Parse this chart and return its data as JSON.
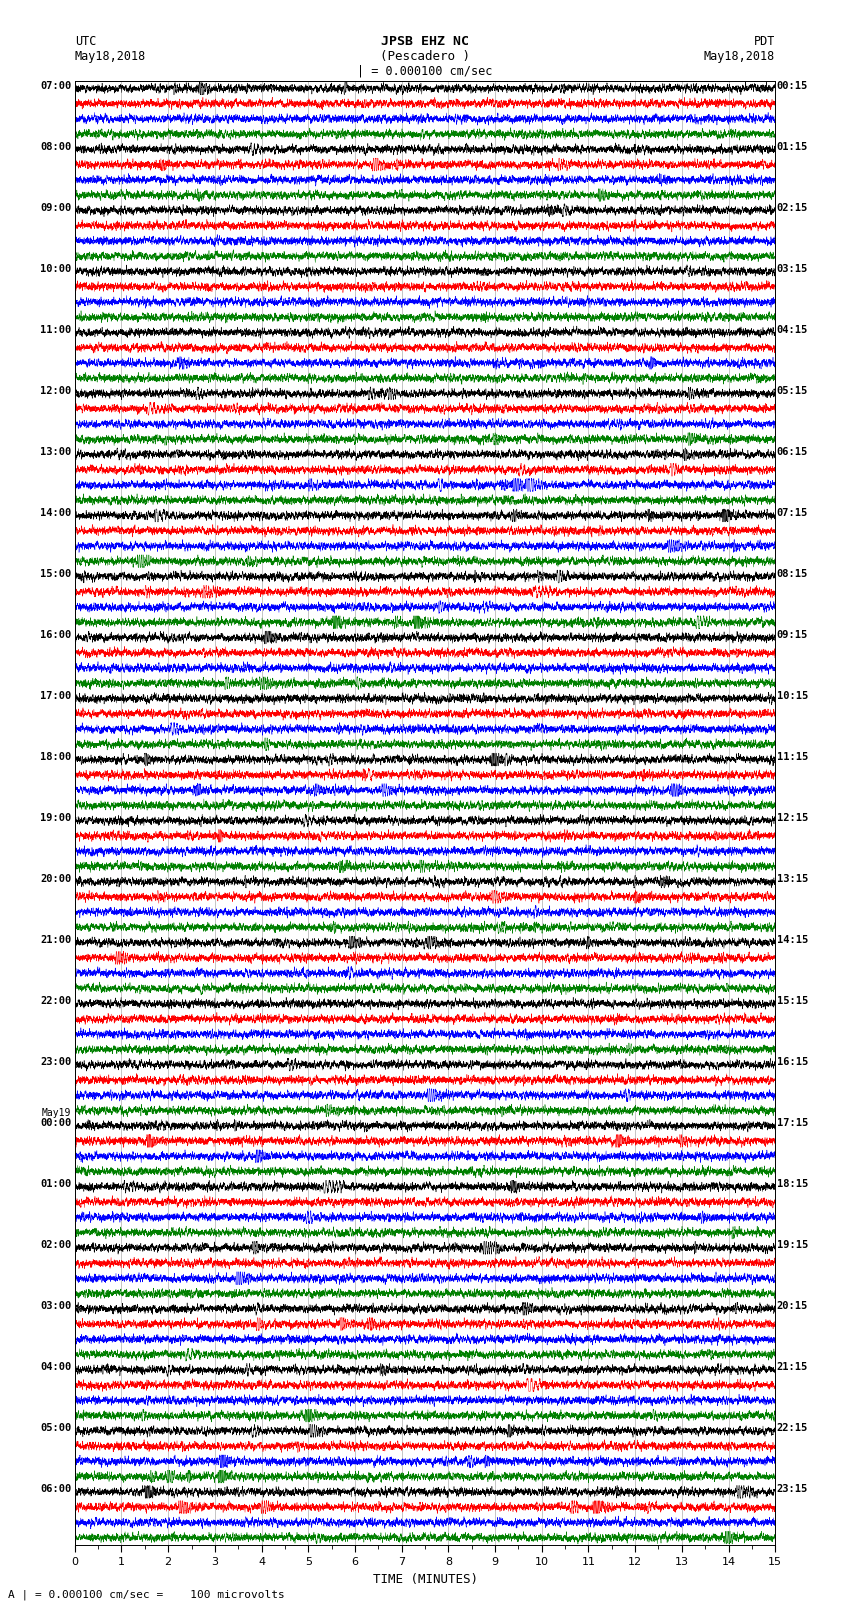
{
  "title_line1": "JPSB EHZ NC",
  "title_line2": "(Pescadero )",
  "title_line3": "| = 0.000100 cm/sec",
  "label_utc": "UTC",
  "label_pdt": "PDT",
  "label_date_left": "May18,2018",
  "label_date_right": "May18,2018",
  "xlabel": "TIME (MINUTES)",
  "footer": "A | = 0.000100 cm/sec =    100 microvolts",
  "left_times": [
    "07:00",
    "08:00",
    "09:00",
    "10:00",
    "11:00",
    "12:00",
    "13:00",
    "14:00",
    "15:00",
    "16:00",
    "17:00",
    "18:00",
    "19:00",
    "20:00",
    "21:00",
    "22:00",
    "23:00",
    "May19",
    "00:00",
    "01:00",
    "02:00",
    "03:00",
    "04:00",
    "05:00",
    "06:00"
  ],
  "right_times": [
    "00:15",
    "01:15",
    "02:15",
    "03:15",
    "04:15",
    "05:15",
    "06:15",
    "07:15",
    "08:15",
    "09:15",
    "10:15",
    "11:15",
    "12:15",
    "13:15",
    "14:15",
    "15:15",
    "16:15",
    "17:15",
    "18:15",
    "19:15",
    "20:15",
    "21:15",
    "22:15",
    "23:15"
  ],
  "colors": [
    "black",
    "red",
    "blue",
    "green"
  ],
  "bg_color": "white",
  "n_rows": 96,
  "n_hours": 24,
  "traces_per_hour": 4,
  "xmin": 0,
  "xmax": 15,
  "seed": 42
}
